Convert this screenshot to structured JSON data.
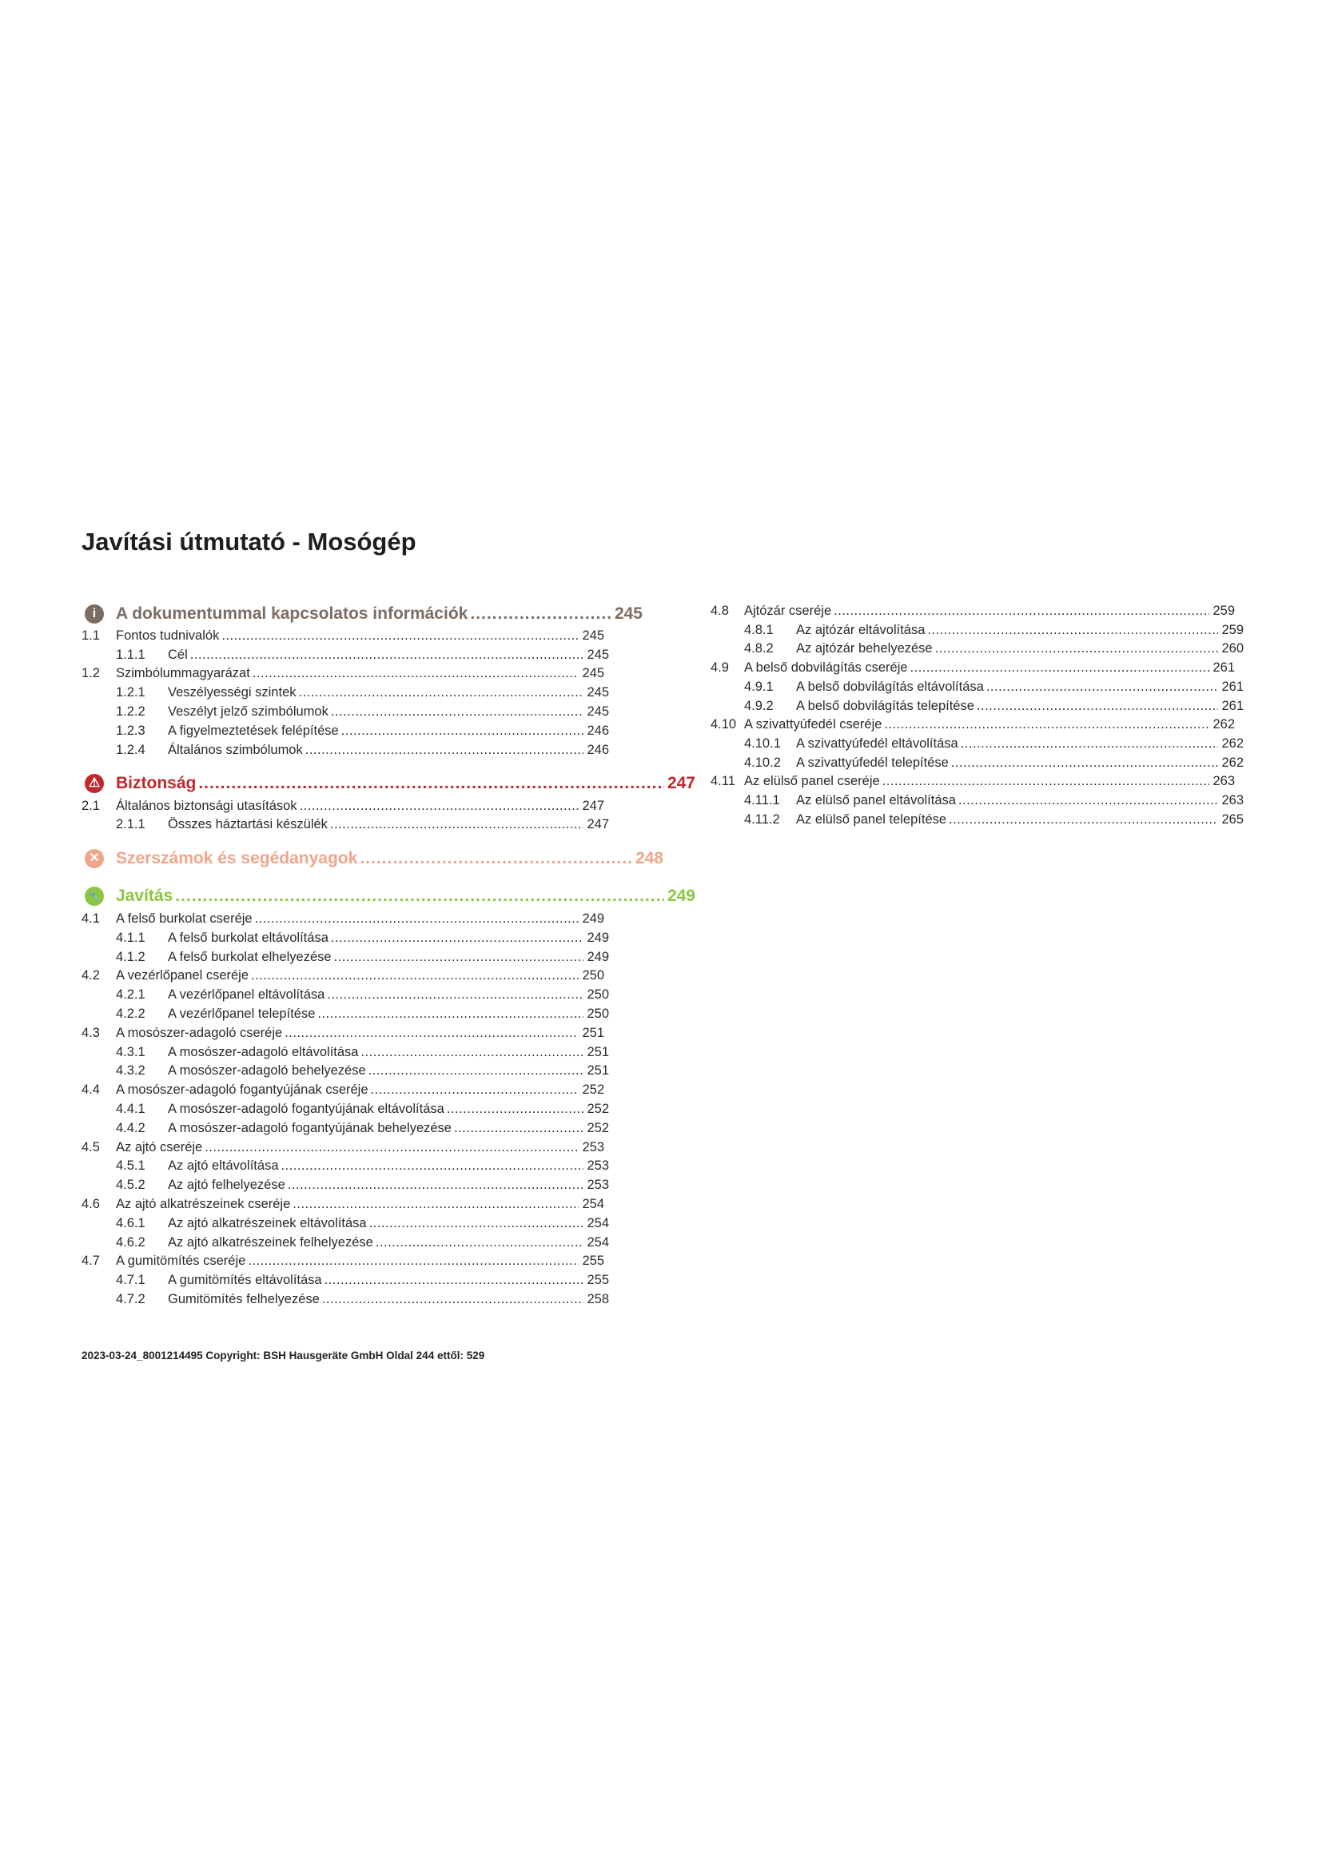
{
  "title": "Javítási útmutató - Mosógép",
  "colors": {
    "info": "#7b6d62",
    "safety": "#c1272d",
    "tools": "#f0a58a",
    "repair": "#8cc63f"
  },
  "left_column": [
    {
      "type": "heading",
      "icon": "info-icon",
      "color": "info",
      "text": "A dokumentummal kapcsolatos információk",
      "page": "245"
    },
    {
      "type": "l1",
      "num": "1.1",
      "text": "Fontos tudnivalók",
      "page": "245"
    },
    {
      "type": "l2",
      "num": "1.1.1",
      "text": "Cél",
      "page": "245"
    },
    {
      "type": "l1",
      "num": "1.2",
      "text": "Szimbólummagyarázat",
      "page": "245"
    },
    {
      "type": "l2",
      "num": "1.2.1",
      "text": "Veszélyességi szintek",
      "page": "245"
    },
    {
      "type": "l2",
      "num": "1.2.2",
      "text": "Veszélyt jelző szimbólumok",
      "page": "245"
    },
    {
      "type": "l2",
      "num": "1.2.3",
      "text": "A figyelmeztetések felépítése",
      "page": "246"
    },
    {
      "type": "l2",
      "num": "1.2.4",
      "text": "Általános szimbólumok",
      "page": "246"
    },
    {
      "type": "heading",
      "icon": "warning-triangle-icon",
      "color": "safety",
      "text": "Biztonság",
      "page": "247"
    },
    {
      "type": "l1",
      "num": "2.1",
      "text": "Általános biztonsági utasítások",
      "page": "247"
    },
    {
      "type": "l2",
      "num": "2.1.1",
      "text": "Összes háztartási készülék",
      "page": "247"
    },
    {
      "type": "heading",
      "icon": "tools-icon",
      "color": "tools",
      "text": "Szerszámok és segédanyagok",
      "page": "248"
    },
    {
      "type": "heading",
      "icon": "wrench-icon",
      "color": "repair",
      "text": "Javítás",
      "page": "249"
    },
    {
      "type": "l1",
      "num": "4.1",
      "text": "A felső burkolat cseréje",
      "page": "249"
    },
    {
      "type": "l2",
      "num": "4.1.1",
      "text": "A felső burkolat eltávolítása",
      "page": "249"
    },
    {
      "type": "l2",
      "num": "4.1.2",
      "text": "A felső burkolat elhelyezése",
      "page": "249"
    },
    {
      "type": "l1",
      "num": "4.2",
      "text": "A vezérlőpanel cseréje",
      "page": "250"
    },
    {
      "type": "l2",
      "num": "4.2.1",
      "text": "A vezérlőpanel eltávolítása",
      "page": "250"
    },
    {
      "type": "l2",
      "num": "4.2.2",
      "text": "A vezérlőpanel telepítése",
      "page": "250"
    },
    {
      "type": "l1",
      "num": "4.3",
      "text": "A mosószer-adagoló cseréje",
      "page": "251"
    },
    {
      "type": "l2",
      "num": "4.3.1",
      "text": "A mosószer-adagoló eltávolítása",
      "page": "251"
    },
    {
      "type": "l2",
      "num": "4.3.2",
      "text": "A mosószer-adagoló behelyezése",
      "page": "251"
    },
    {
      "type": "l1",
      "num": "4.4",
      "text": "A mosószer-adagoló fogantyújának cseréje",
      "page": "252"
    },
    {
      "type": "l2",
      "num": "4.4.1",
      "text": "A mosószer-adagoló fogantyújának eltávolítása",
      "page": "252"
    },
    {
      "type": "l2",
      "num": "4.4.2",
      "text": "A mosószer-adagoló fogantyújának behelyezése",
      "page": "252"
    },
    {
      "type": "l1",
      "num": "4.5",
      "text": "Az ajtó cseréje",
      "page": "253"
    },
    {
      "type": "l2",
      "num": "4.5.1",
      "text": "Az ajtó eltávolítása",
      "page": "253"
    },
    {
      "type": "l2",
      "num": "4.5.2",
      "text": "Az ajtó felhelyezése",
      "page": "253"
    },
    {
      "type": "l1",
      "num": "4.6",
      "text": "Az ajtó alkatrészeinek cseréje",
      "page": "254"
    },
    {
      "type": "l2",
      "num": "4.6.1",
      "text": "Az ajtó alkatrészeinek eltávolítása",
      "page": "254"
    },
    {
      "type": "l2",
      "num": "4.6.2",
      "text": "Az ajtó alkatrészeinek felhelyezése",
      "page": "254"
    },
    {
      "type": "l1",
      "num": "4.7",
      "text": "A gumitömítés cseréje",
      "page": "255"
    },
    {
      "type": "l2",
      "num": "4.7.1",
      "text": "A gumitömítés eltávolítása",
      "page": "255"
    },
    {
      "type": "l2",
      "num": "4.7.2",
      "text": "Gumitömítés felhelyezése",
      "page": "258"
    }
  ],
  "right_column": [
    {
      "type": "l1",
      "num": "4.8",
      "text": "Ajtózár cseréje",
      "page": "259"
    },
    {
      "type": "l2",
      "num": "4.8.1",
      "text": "Az ajtózár eltávolítása",
      "page": "259"
    },
    {
      "type": "l2",
      "num": "4.8.2",
      "text": "Az ajtózár behelyezése",
      "page": "260"
    },
    {
      "type": "l1",
      "num": "4.9",
      "text": "A belső dobvilágítás cseréje",
      "page": "261"
    },
    {
      "type": "l2",
      "num": "4.9.1",
      "text": "A belső dobvilágítás eltávolítása",
      "page": "261"
    },
    {
      "type": "l2",
      "num": "4.9.2",
      "text": "A belső dobvilágítás telepítése",
      "page": "261"
    },
    {
      "type": "l1",
      "num": "4.10",
      "text": "A szivattyúfedél cseréje",
      "page": "262"
    },
    {
      "type": "l2",
      "num": "4.10.1",
      "text": "A szivattyúfedél eltávolítása",
      "page": "262"
    },
    {
      "type": "l2",
      "num": "4.10.2",
      "text": "A szivattyúfedél telepítése",
      "page": "262"
    },
    {
      "type": "l1",
      "num": "4.11",
      "text": "Az elülső panel cseréje",
      "page": "263"
    },
    {
      "type": "l2",
      "num": "4.11.1",
      "text": "Az elülső panel eltávolítása",
      "page": "263"
    },
    {
      "type": "l2",
      "num": "4.11.2",
      "text": "Az elülső panel telepítése",
      "page": "265"
    }
  ],
  "footer": "2023-03-24_8001214495 Copyright: BSH Hausgeräte GmbH Oldal 244 ettől: 529"
}
